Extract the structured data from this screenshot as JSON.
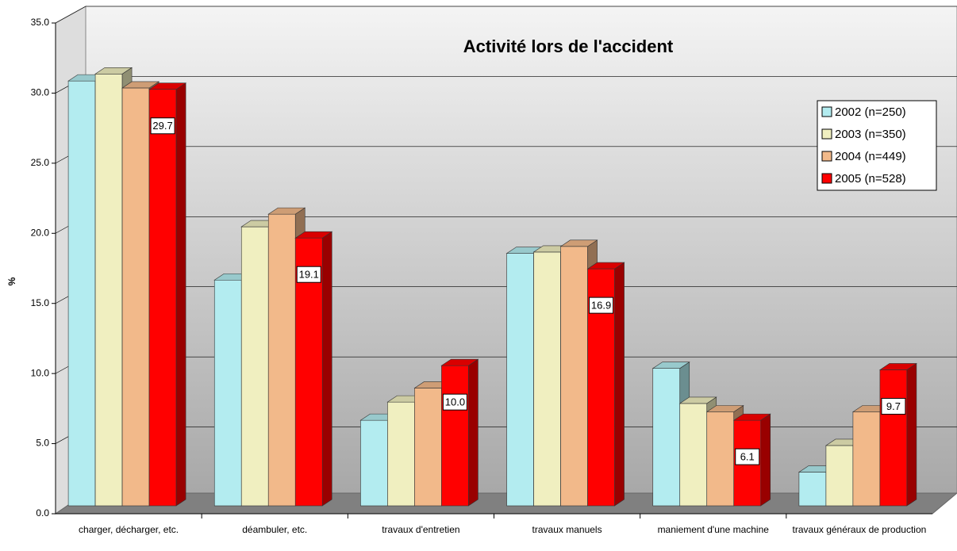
{
  "chart_data": {
    "type": "bar3d",
    "title": "Activité lors de l'accident",
    "y_label": "%",
    "categories": [
      "charger, décharger, etc.",
      "déambuler, etc.",
      "travaux d'entretien",
      "travaux manuels",
      "maniement d'une machine",
      "travaux généraux de production"
    ],
    "series": [
      {
        "name": "2002 (n=250)",
        "color": "#b3ecf0",
        "values": [
          30.3,
          16.1,
          6.1,
          18.0,
          9.8,
          2.4
        ]
      },
      {
        "name": "2003 (n=350)",
        "color": "#f0efc0",
        "values": [
          30.8,
          19.9,
          7.4,
          18.1,
          7.3,
          4.3
        ]
      },
      {
        "name": "2004 (n=449)",
        "color": "#f2b98a",
        "values": [
          29.8,
          20.8,
          8.4,
          18.5,
          6.7,
          6.7
        ]
      },
      {
        "name": "2005 (n=528)",
        "color": "#ff0000",
        "values": [
          29.7,
          19.1,
          10.0,
          16.9,
          6.1,
          9.7
        ],
        "value_labels": [
          "29.7",
          "19.1",
          "10.0",
          "16.9",
          "6.1",
          "9.7"
        ]
      }
    ],
    "ylim": [
      0,
      35
    ],
    "yticks": [
      {
        "value": 0,
        "label": "0.0"
      },
      {
        "value": 5,
        "label": "5.0"
      },
      {
        "value": 10,
        "label": "10.0"
      },
      {
        "value": 15,
        "label": "15.0"
      },
      {
        "value": 20,
        "label": "20.0"
      },
      {
        "value": 25,
        "label": "25.0"
      },
      {
        "value": 30,
        "label": "30.0"
      },
      {
        "value": 35,
        "label": "35.0"
      }
    ],
    "grid": true,
    "legend": "right"
  }
}
